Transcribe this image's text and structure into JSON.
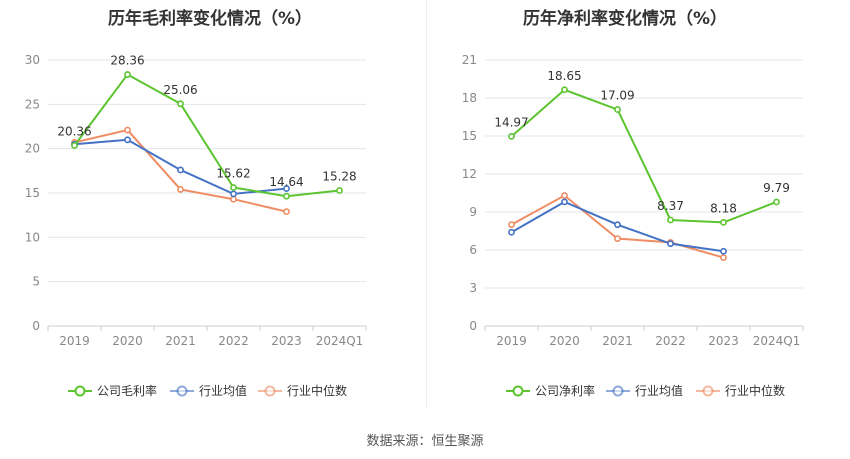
{
  "source_label": "数据来源：",
  "source_value": "恒生聚源",
  "colors": {
    "company": "#5bc42f",
    "avg": "#4472c4",
    "median": "#ef8c63",
    "grid": "#e0e4ee",
    "axis": "#c9ccd6",
    "tick": "#888888",
    "label": "#333333"
  },
  "chart_data": [
    {
      "type": "line",
      "title": "历年毛利率变化情况（%）",
      "categories": [
        "2019",
        "2020",
        "2021",
        "2022",
        "2023",
        "2024Q1"
      ],
      "ylim": [
        0,
        30
      ],
      "yticks": [
        0,
        5,
        10,
        15,
        20,
        25,
        30
      ],
      "grid": true,
      "legend_position": "bottom",
      "series": [
        {
          "name": "公司毛利率",
          "key": "company",
          "values": [
            20.36,
            28.36,
            25.06,
            15.62,
            14.64,
            15.28
          ],
          "labels": [
            "20.36",
            "28.36",
            "25.06",
            "15.62",
            "14.64",
            "15.28"
          ]
        },
        {
          "name": "行业均值",
          "key": "avg",
          "values": [
            20.5,
            21.0,
            17.6,
            14.9,
            15.5,
            null
          ]
        },
        {
          "name": "行业中位数",
          "key": "median",
          "values": [
            20.7,
            22.1,
            15.4,
            14.3,
            12.9,
            null
          ]
        }
      ]
    },
    {
      "type": "line",
      "title": "历年净利率变化情况（%）",
      "categories": [
        "2019",
        "2020",
        "2021",
        "2022",
        "2023",
        "2024Q1"
      ],
      "ylim": [
        0,
        21
      ],
      "yticks": [
        0,
        3,
        6,
        9,
        12,
        15,
        18,
        21
      ],
      "grid": true,
      "legend_position": "bottom",
      "series": [
        {
          "name": "公司净利率",
          "key": "company",
          "values": [
            14.97,
            18.65,
            17.09,
            8.37,
            8.18,
            9.79
          ],
          "labels": [
            "14.97",
            "18.65",
            "17.09",
            "8.37",
            "8.18",
            "9.79"
          ]
        },
        {
          "name": "行业均值",
          "key": "avg",
          "values": [
            7.4,
            9.8,
            8.0,
            6.5,
            5.9,
            null
          ]
        },
        {
          "name": "行业中位数",
          "key": "median",
          "values": [
            8.0,
            10.3,
            6.9,
            6.6,
            5.4,
            null
          ]
        }
      ]
    }
  ]
}
